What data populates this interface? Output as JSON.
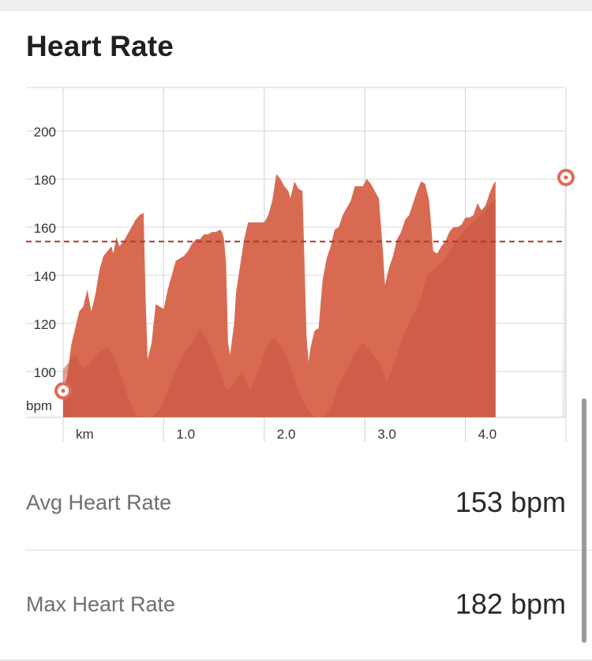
{
  "title": "Heart Rate",
  "chart_data": {
    "type": "area",
    "x_unit_label": "km",
    "y_unit_label": "bpm",
    "x_ticks": [
      "1.0",
      "2.0",
      "3.0",
      "4.0"
    ],
    "y_ticks": [
      100,
      120,
      140,
      160,
      180,
      200
    ],
    "xlim": [
      0,
      5
    ],
    "ylim": [
      81,
      218
    ],
    "average_line": 154,
    "colors": {
      "fill": "#d96a52",
      "shadow": "#c7533f",
      "avg_line": "#a8382a",
      "grid": "#d8d8d8",
      "endpoint": "#e06b55"
    },
    "series": [
      {
        "values": [
          [
            0.0,
            92
          ],
          [
            0.04,
            98
          ],
          [
            0.08,
            111
          ],
          [
            0.12,
            118
          ],
          [
            0.16,
            125
          ],
          [
            0.2,
            127
          ],
          [
            0.24,
            134
          ],
          [
            0.28,
            125
          ],
          [
            0.32,
            132
          ],
          [
            0.36,
            142
          ],
          [
            0.4,
            148
          ],
          [
            0.44,
            150
          ],
          [
            0.48,
            152
          ],
          [
            0.5,
            149
          ],
          [
            0.53,
            156
          ],
          [
            0.56,
            152
          ],
          [
            0.6,
            154
          ],
          [
            0.64,
            157
          ],
          [
            0.68,
            160
          ],
          [
            0.72,
            163
          ],
          [
            0.76,
            165
          ],
          [
            0.8,
            166
          ],
          [
            0.82,
            130
          ],
          [
            0.84,
            105
          ],
          [
            0.88,
            112
          ],
          [
            0.92,
            128
          ],
          [
            0.96,
            127
          ],
          [
            1.0,
            126
          ],
          [
            1.04,
            134
          ],
          [
            1.08,
            140
          ],
          [
            1.12,
            146
          ],
          [
            1.16,
            147
          ],
          [
            1.2,
            148
          ],
          [
            1.24,
            150
          ],
          [
            1.28,
            153
          ],
          [
            1.32,
            155
          ],
          [
            1.36,
            155
          ],
          [
            1.4,
            157
          ],
          [
            1.44,
            157
          ],
          [
            1.48,
            158
          ],
          [
            1.52,
            158
          ],
          [
            1.56,
            159
          ],
          [
            1.58,
            158
          ],
          [
            1.6,
            155
          ],
          [
            1.62,
            145
          ],
          [
            1.64,
            112
          ],
          [
            1.66,
            107
          ],
          [
            1.7,
            120
          ],
          [
            1.72,
            133
          ],
          [
            1.76,
            144
          ],
          [
            1.8,
            155
          ],
          [
            1.84,
            162
          ],
          [
            1.88,
            162
          ],
          [
            1.92,
            162
          ],
          [
            1.96,
            162
          ],
          [
            2.0,
            162
          ],
          [
            2.04,
            165
          ],
          [
            2.08,
            171
          ],
          [
            2.12,
            182
          ],
          [
            2.16,
            180
          ],
          [
            2.2,
            177
          ],
          [
            2.24,
            175
          ],
          [
            2.26,
            172
          ],
          [
            2.3,
            179
          ],
          [
            2.34,
            176
          ],
          [
            2.38,
            175
          ],
          [
            2.4,
            145
          ],
          [
            2.42,
            115
          ],
          [
            2.44,
            104
          ],
          [
            2.46,
            110
          ],
          [
            2.5,
            117
          ],
          [
            2.54,
            118
          ],
          [
            2.58,
            138
          ],
          [
            2.62,
            147
          ],
          [
            2.66,
            152
          ],
          [
            2.7,
            159
          ],
          [
            2.74,
            160
          ],
          [
            2.78,
            165
          ],
          [
            2.82,
            168
          ],
          [
            2.86,
            171
          ],
          [
            2.9,
            177
          ],
          [
            2.94,
            177
          ],
          [
            2.98,
            177
          ],
          [
            3.02,
            180
          ],
          [
            3.06,
            178
          ],
          [
            3.1,
            175
          ],
          [
            3.14,
            172
          ],
          [
            3.18,
            150
          ],
          [
            3.2,
            136
          ],
          [
            3.24,
            143
          ],
          [
            3.28,
            148
          ],
          [
            3.32,
            155
          ],
          [
            3.36,
            158
          ],
          [
            3.4,
            163
          ],
          [
            3.44,
            165
          ],
          [
            3.48,
            170
          ],
          [
            3.52,
            175
          ],
          [
            3.56,
            179
          ],
          [
            3.6,
            178
          ],
          [
            3.64,
            171
          ],
          [
            3.68,
            150
          ],
          [
            3.72,
            149
          ],
          [
            3.76,
            152
          ],
          [
            3.8,
            154
          ],
          [
            3.84,
            158
          ],
          [
            3.88,
            160
          ],
          [
            3.92,
            160
          ],
          [
            3.96,
            161
          ],
          [
            4.0,
            164
          ],
          [
            4.04,
            164
          ],
          [
            4.08,
            165
          ],
          [
            4.12,
            170
          ],
          [
            4.16,
            167
          ],
          [
            4.2,
            169
          ],
          [
            4.24,
            174
          ],
          [
            4.28,
            178
          ],
          [
            4.3,
            179
          ]
        ]
      }
    ],
    "start_point": [
      0.0,
      92
    ],
    "end_point": [
      4.3,
      179
    ]
  },
  "stats": [
    {
      "label": "Avg Heart Rate",
      "value": "153 bpm"
    },
    {
      "label": "Max Heart Rate",
      "value": "182 bpm"
    }
  ]
}
